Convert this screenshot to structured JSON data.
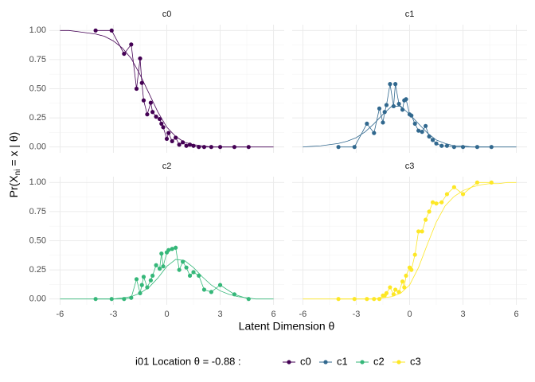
{
  "chart_data": [
    {
      "type": "line",
      "title": "c0",
      "color": "#440154",
      "x": [
        -4,
        -3.1,
        -2.4,
        -2.0,
        -1.7,
        -1.5,
        -1.4,
        -1.3,
        -1.1,
        -0.9,
        -0.8,
        -0.6,
        -0.4,
        -0.3,
        -0.2,
        0,
        0.1,
        0.3,
        0.5,
        0.7,
        0.9,
        1.1,
        1.3,
        1.5,
        1.8,
        2.1,
        2.5,
        3,
        3.8,
        4.6
      ],
      "values": [
        1.0,
        1.0,
        0.8,
        0.88,
        0.5,
        0.76,
        0.55,
        0.4,
        0.28,
        0.38,
        0.3,
        0.26,
        0.24,
        0.2,
        0.17,
        0.07,
        0.12,
        0.05,
        0.08,
        0.02,
        0.04,
        0.01,
        0.02,
        0.01,
        0,
        0,
        0,
        0,
        0,
        0
      ],
      "curve": {
        "x": [
          -6,
          -5.5,
          -5,
          -4.5,
          -4,
          -3.5,
          -3,
          -2.5,
          -2,
          -1.5,
          -1,
          -0.5,
          0,
          0.5,
          1,
          1.5,
          2,
          2.5,
          3,
          3.5,
          4,
          4.5,
          5,
          5.5,
          6
        ],
        "values": [
          1,
          1,
          0.99,
          0.98,
          0.97,
          0.95,
          0.91,
          0.85,
          0.76,
          0.62,
          0.46,
          0.3,
          0.17,
          0.09,
          0.04,
          0.02,
          0.01,
          0,
          0,
          0,
          0,
          0,
          0,
          0,
          0
        ]
      },
      "xlim": [
        -6.6,
        6.6
      ],
      "ylim": [
        -0.05,
        1.05
      ],
      "xticks": [
        -6,
        -3,
        0,
        3,
        6
      ],
      "yticks": [
        {
          "value": 0,
          "label": "0.00"
        },
        {
          "value": 0.25,
          "label": "0.25"
        },
        {
          "value": 0.5,
          "label": "0.50"
        },
        {
          "value": 0.75,
          "label": "0.75"
        },
        {
          "value": 1,
          "label": "1.00"
        }
      ]
    },
    {
      "type": "line",
      "title": "c1",
      "color": "#31688E",
      "x": [
        -4,
        -3.1,
        -2.4,
        -2.0,
        -1.7,
        -1.5,
        -1.4,
        -1.3,
        -1.1,
        -0.9,
        -0.8,
        -0.6,
        -0.4,
        -0.3,
        -0.2,
        0,
        0.1,
        0.3,
        0.5,
        0.7,
        0.9,
        1.1,
        1.3,
        1.5,
        1.8,
        2.1,
        2.5,
        3,
        3.8,
        4.6
      ],
      "values": [
        0,
        0,
        0.2,
        0.12,
        0.33,
        0.21,
        0.3,
        0.36,
        0.54,
        0.35,
        0.54,
        0.37,
        0.32,
        0.4,
        0.41,
        0.28,
        0.27,
        0.2,
        0.14,
        0.13,
        0.18,
        0.09,
        0.06,
        0.03,
        0.01,
        0.01,
        0,
        0,
        0,
        0
      ],
      "curve": {
        "x": [
          -6,
          -5.5,
          -5,
          -4.5,
          -4,
          -3.5,
          -3,
          -2.5,
          -2,
          -1.5,
          -1,
          -0.5,
          0,
          0.5,
          1,
          1.5,
          2,
          2.5,
          3,
          3.5,
          4,
          4.5,
          5,
          5.5,
          6
        ],
        "values": [
          0,
          0.005,
          0.01,
          0.02,
          0.03,
          0.05,
          0.08,
          0.13,
          0.2,
          0.28,
          0.35,
          0.35,
          0.28,
          0.2,
          0.12,
          0.06,
          0.03,
          0.01,
          0.01,
          0,
          0,
          0,
          0,
          0,
          0
        ]
      },
      "xlim": [
        -6.6,
        6.6
      ],
      "ylim": [
        -0.05,
        1.05
      ],
      "xticks": [
        -6,
        -3,
        0,
        3,
        6
      ],
      "yticks": [
        {
          "value": 0,
          "label": "0.00"
        },
        {
          "value": 0.25,
          "label": "0.25"
        },
        {
          "value": 0.5,
          "label": "0.50"
        },
        {
          "value": 0.75,
          "label": "0.75"
        },
        {
          "value": 1,
          "label": "1.00"
        }
      ]
    },
    {
      "type": "line",
      "title": "c2",
      "color": "#35B779",
      "x": [
        -4,
        -3.1,
        -2.4,
        -2.0,
        -1.7,
        -1.5,
        -1.4,
        -1.3,
        -1.1,
        -0.9,
        -0.8,
        -0.6,
        -0.4,
        -0.3,
        -0.2,
        0,
        0.1,
        0.3,
        0.5,
        0.7,
        0.9,
        1.1,
        1.3,
        1.5,
        1.8,
        2.1,
        2.5,
        3,
        3.8,
        4.6
      ],
      "values": [
        0,
        0,
        0,
        0.01,
        0.17,
        0.05,
        0.12,
        0.19,
        0.1,
        0.16,
        0.2,
        0.29,
        0.26,
        0.39,
        0.28,
        0.4,
        0.42,
        0.43,
        0.44,
        0.25,
        0.32,
        0.27,
        0.2,
        0.23,
        0.2,
        0.08,
        0.06,
        0.12,
        0.04,
        0
      ],
      "curve": {
        "x": [
          -6,
          -5.5,
          -5,
          -4.5,
          -4,
          -3.5,
          -3,
          -2.5,
          -2,
          -1.5,
          -1,
          -0.5,
          0,
          0.5,
          1,
          1.5,
          2,
          2.5,
          3,
          3.5,
          4,
          4.5,
          5,
          5.5,
          6
        ],
        "values": [
          0,
          0,
          0,
          0,
          0,
          0,
          0,
          0.01,
          0.02,
          0.05,
          0.1,
          0.18,
          0.28,
          0.34,
          0.33,
          0.27,
          0.19,
          0.12,
          0.07,
          0.04,
          0.02,
          0.01,
          0,
          0,
          0
        ]
      },
      "xlim": [
        -6.6,
        6.6
      ],
      "ylim": [
        -0.05,
        1.05
      ],
      "xticks": [
        -6,
        -3,
        0,
        3,
        6
      ],
      "yticks": [
        {
          "value": 0,
          "label": "0.00"
        },
        {
          "value": 0.25,
          "label": "0.25"
        },
        {
          "value": 0.5,
          "label": "0.50"
        },
        {
          "value": 0.75,
          "label": "0.75"
        },
        {
          "value": 1,
          "label": "1.00"
        }
      ]
    },
    {
      "type": "line",
      "title": "c3",
      "color": "#FDE725",
      "x": [
        -4,
        -3.1,
        -2.4,
        -2.0,
        -1.7,
        -1.5,
        -1.4,
        -1.3,
        -1.1,
        -0.9,
        -0.8,
        -0.6,
        -0.4,
        -0.3,
        -0.2,
        0,
        0.1,
        0.3,
        0.5,
        0.7,
        0.9,
        1.1,
        1.3,
        1.5,
        1.8,
        2.1,
        2.5,
        3,
        3.8,
        4.6
      ],
      "values": [
        0,
        0,
        0,
        0,
        0,
        0.03,
        0.03,
        0.05,
        0.1,
        0.04,
        0.08,
        0.06,
        0.15,
        0.1,
        0.2,
        0.27,
        0.25,
        0.38,
        0.58,
        0.58,
        0.68,
        0.75,
        0.83,
        0.82,
        0.83,
        0.9,
        0.96,
        0.9,
        1,
        1
      ],
      "curve": {
        "x": [
          -6,
          -5.5,
          -5,
          -4.5,
          -4,
          -3.5,
          -3,
          -2.5,
          -2,
          -1.5,
          -1,
          -0.5,
          0,
          0.5,
          1,
          1.5,
          2,
          2.5,
          3,
          3.5,
          4,
          4.5,
          5,
          5.5,
          6
        ],
        "values": [
          0,
          0,
          0,
          0,
          0,
          0,
          0,
          0,
          0,
          0.01,
          0.02,
          0.05,
          0.12,
          0.27,
          0.47,
          0.66,
          0.8,
          0.88,
          0.93,
          0.96,
          0.98,
          0.99,
          0.99,
          1,
          1
        ]
      },
      "xlim": [
        -6.6,
        6.6
      ],
      "ylim": [
        -0.05,
        1.05
      ],
      "xticks": [
        -6,
        -3,
        0,
        3,
        6
      ],
      "yticks": [
        {
          "value": 0,
          "label": "0.00"
        },
        {
          "value": 0.25,
          "label": "0.25"
        },
        {
          "value": 0.5,
          "label": "0.50"
        },
        {
          "value": 0.75,
          "label": "0.75"
        },
        {
          "value": 1,
          "label": "1.00"
        }
      ]
    }
  ],
  "xlabel": "Latent Dimension θ",
  "ylabel": {
    "main": "Pr(X",
    "sub": "ni",
    "rest": " = x | θ)"
  },
  "legend": {
    "title": "i01 Location  θ = -0.88 :",
    "entries": [
      "c0",
      "c1",
      "c2",
      "c3"
    ]
  },
  "grid": true
}
